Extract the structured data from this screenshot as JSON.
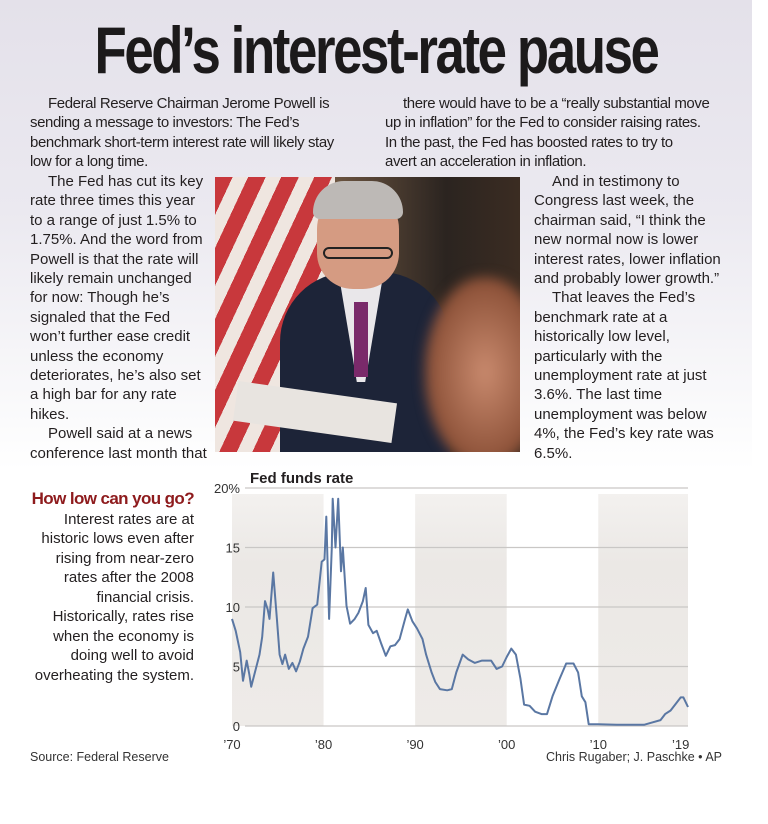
{
  "headline": "Fed’s interest-rate pause",
  "article": {
    "col1": [
      [
        "Federal Reserve Chairman Jerome Powell is",
        "sending a message to investors: The Fed’s",
        "benchmark short-term interest rate will likely stay",
        "low for a long time."
      ]
    ],
    "col2": [
      [
        "there would have to be a “really substantial move",
        "up in inflation” for the Fed to consider raising rates.",
        "In the past, the Fed has boosted rates to try to",
        "avert an acceleration in inflation."
      ]
    ],
    "col3": [
      [
        "The Fed has cut its key",
        "rate three times this year",
        "to a range of just 1.5% to",
        "1.75%. And the word from",
        "Powell is that the rate will",
        "likely remain unchanged",
        "for now: Though he’s",
        "signaled that the Fed",
        "won’t further ease credit",
        "unless the economy",
        "deteriorates, he’s also set",
        "a high bar for any rate",
        "hikes."
      ],
      [
        "Powell said at a news",
        "conference last month that"
      ]
    ],
    "col4": [
      [
        "And in testimony to",
        "Congress last week, the",
        "chairman said, “I think the",
        "new normal now is lower",
        "interest rates, lower inflation",
        "and probably lower growth.”"
      ],
      [
        "That leaves the Fed’s",
        "benchmark rate at a",
        "historically low level,",
        "particularly with the",
        "unemployment rate at just",
        "3.6%. The last time",
        "unemployment was below",
        "4%, the Fed’s key rate was",
        "6.5%."
      ]
    ]
  },
  "blurb": {
    "heading": "How low can you go?",
    "body": "Interest rates are at historic lows even after rising from near-zero rates after the 2008 financial crisis. Historically, rates rise when the economy is doing well to avoid overheating the system.",
    "heading_color": "#8e1b1d"
  },
  "source": "Source: Federal Reserve",
  "credit": "Chris Rugaber; J. Paschke • AP",
  "chart_data": {
    "type": "line",
    "title": "Fed funds rate",
    "xlim": [
      1970,
      2019.8
    ],
    "ylim": [
      0,
      20
    ],
    "y_ticks": [
      {
        "value": 0,
        "label": "0"
      },
      {
        "value": 5,
        "label": "5"
      },
      {
        "value": 10,
        "label": "10"
      },
      {
        "value": 15,
        "label": "15"
      },
      {
        "value": 20,
        "label": "20%"
      }
    ],
    "x_ticks": [
      {
        "value": 1970,
        "label": "’70"
      },
      {
        "value": 1980,
        "label": "’80"
      },
      {
        "value": 1990,
        "label": "’90"
      },
      {
        "value": 2000,
        "label": "’00"
      },
      {
        "value": 2010,
        "label": "’10"
      },
      {
        "value": 2019,
        "label": "’19"
      }
    ],
    "grid": true,
    "shaded_decades": [
      [
        1970,
        1980
      ],
      [
        1990,
        2000
      ],
      [
        2010,
        2019.8
      ]
    ],
    "line_color": "#5a77a3",
    "x": [
      1970.0,
      1970.4,
      1970.9,
      1971.2,
      1971.6,
      1971.9,
      1972.1,
      1972.5,
      1973.0,
      1973.3,
      1973.6,
      1973.9,
      1974.1,
      1974.5,
      1974.9,
      1975.2,
      1975.5,
      1975.8,
      1976.2,
      1976.6,
      1977.0,
      1977.4,
      1977.8,
      1978.3,
      1978.8,
      1979.3,
      1979.8,
      1980.1,
      1980.3,
      1980.6,
      1980.9,
      1981.0,
      1981.3,
      1981.6,
      1981.9,
      1982.1,
      1982.5,
      1982.9,
      1983.4,
      1983.8,
      1984.3,
      1984.6,
      1984.9,
      1985.4,
      1985.8,
      1986.3,
      1986.8,
      1987.3,
      1987.8,
      1988.3,
      1988.9,
      1989.2,
      1989.7,
      1990.2,
      1990.8,
      1991.2,
      1991.8,
      1992.2,
      1992.7,
      1993.5,
      1994.0,
      1994.5,
      1995.2,
      1995.8,
      1996.5,
      1997.3,
      1998.3,
      1998.9,
      1999.5,
      2000.0,
      2000.5,
      2001.0,
      2001.5,
      2001.9,
      2002.5,
      2003.1,
      2003.8,
      2004.4,
      2005.0,
      2005.8,
      2006.5,
      2007.3,
      2007.8,
      2008.2,
      2008.6,
      2008.95,
      2010.0,
      2012.0,
      2015.0,
      2015.9,
      2016.8,
      2017.3,
      2017.9,
      2018.5,
      2019.0,
      2019.3,
      2019.8
    ],
    "y": [
      9.0,
      8.0,
      6.2,
      3.8,
      5.5,
      4.3,
      3.3,
      4.5,
      6.0,
      7.5,
      10.5,
      9.8,
      9.0,
      12.9,
      9.0,
      6.0,
      5.2,
      6.0,
      4.8,
      5.3,
      4.6,
      5.4,
      6.5,
      7.5,
      9.9,
      10.2,
      13.8,
      14.0,
      17.6,
      9.0,
      15.0,
      19.1,
      15.0,
      19.1,
      13.0,
      15.0,
      10.1,
      8.6,
      9.0,
      9.5,
      10.5,
      11.6,
      8.5,
      7.8,
      8.0,
      6.9,
      5.9,
      6.7,
      6.8,
      7.3,
      9.0,
      9.8,
      8.8,
      8.2,
      7.3,
      6.0,
      4.5,
      3.7,
      3.1,
      3.0,
      3.1,
      4.5,
      6.0,
      5.6,
      5.3,
      5.5,
      5.5,
      4.8,
      5.0,
      5.8,
      6.5,
      6.0,
      4.0,
      1.8,
      1.7,
      1.2,
      1.0,
      1.0,
      2.5,
      4.0,
      5.25,
      5.25,
      4.5,
      2.5,
      2.0,
      0.15,
      0.15,
      0.1,
      0.1,
      0.3,
      0.5,
      1.0,
      1.3,
      1.9,
      2.4,
      2.4,
      1.6
    ]
  }
}
